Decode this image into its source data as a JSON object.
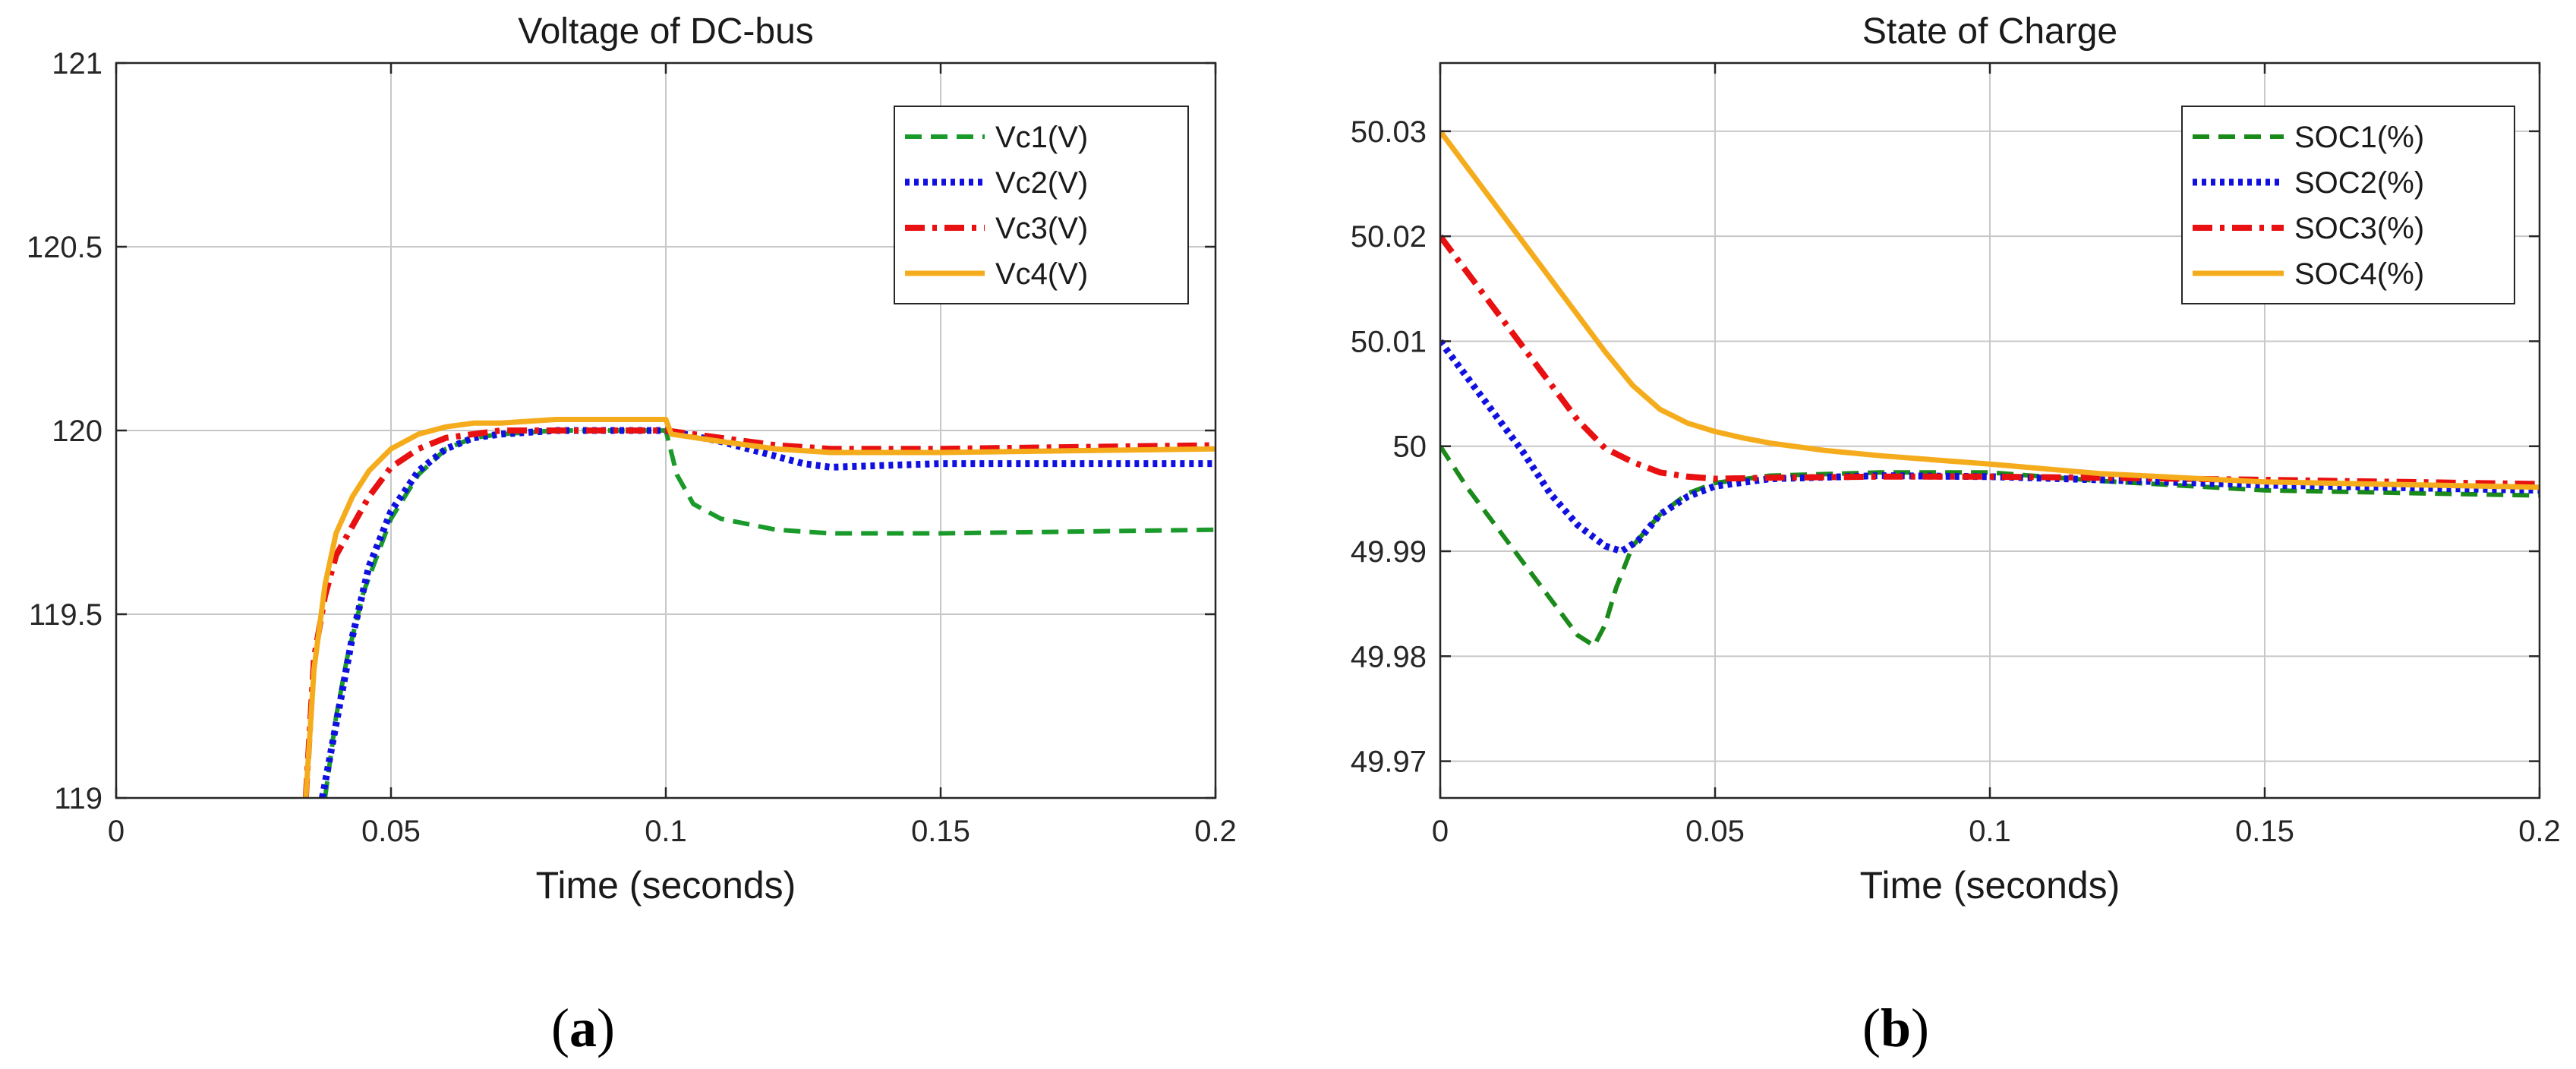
{
  "captions": [
    "a",
    "b"
  ],
  "chart_data": [
    {
      "type": "line",
      "title": "Voltage of DC-bus",
      "xlabel": "Time (seconds)",
      "ylabel": "",
      "xlim": [
        0,
        0.2
      ],
      "ylim": [
        119,
        121
      ],
      "xticks": [
        0,
        0.05,
        0.1,
        0.15,
        0.2
      ],
      "xtick_labels": [
        "0",
        "0.05",
        "0.1",
        "0.15",
        "0.2"
      ],
      "yticks": [
        119,
        119.5,
        120,
        120.5,
        121
      ],
      "ytick_labels": [
        "119",
        "119.5",
        "120",
        "120.5",
        "121"
      ],
      "grid": true,
      "legend_position": "top-right",
      "series": [
        {
          "name": "Vc1(V)",
          "color": "#1a9a2a",
          "dash": "dashed",
          "x": [
            0.038,
            0.04,
            0.042,
            0.045,
            0.05,
            0.055,
            0.06,
            0.065,
            0.07,
            0.08,
            0.09,
            0.1,
            0.102,
            0.105,
            0.11,
            0.12,
            0.13,
            0.15,
            0.2
          ],
          "y": [
            119.0,
            119.22,
            119.38,
            119.56,
            119.76,
            119.88,
            119.95,
            119.98,
            119.99,
            120.0,
            120.0,
            120.0,
            119.88,
            119.8,
            119.76,
            119.73,
            119.72,
            119.72,
            119.73
          ]
        },
        {
          "name": "Vc2(V)",
          "color": "#1010e0",
          "dash": "dotted",
          "x": [
            0.0375,
            0.04,
            0.043,
            0.046,
            0.05,
            0.055,
            0.06,
            0.065,
            0.07,
            0.08,
            0.09,
            0.1,
            0.11,
            0.12,
            0.125,
            0.13,
            0.15,
            0.2
          ],
          "y": [
            119.0,
            119.2,
            119.44,
            119.63,
            119.78,
            119.89,
            119.95,
            119.98,
            119.99,
            120.0,
            120.0,
            120.0,
            119.97,
            119.93,
            119.91,
            119.9,
            119.91,
            119.91
          ]
        },
        {
          "name": "Vc3(V)",
          "color": "#e81010",
          "dash": "dashdot",
          "x": [
            0.0345,
            0.036,
            0.038,
            0.04,
            0.043,
            0.046,
            0.05,
            0.055,
            0.06,
            0.065,
            0.07,
            0.08,
            0.09,
            0.1,
            0.11,
            0.12,
            0.13,
            0.15,
            0.2
          ],
          "y": [
            119.0,
            119.38,
            119.55,
            119.66,
            119.74,
            119.82,
            119.9,
            119.95,
            119.98,
            119.99,
            120.0,
            120.0,
            120.0,
            120.0,
            119.98,
            119.96,
            119.95,
            119.95,
            119.96
          ]
        },
        {
          "name": "Vc4(V)",
          "color": "#f5ac1c",
          "dash": "solid",
          "x": [
            0.0345,
            0.036,
            0.038,
            0.04,
            0.043,
            0.046,
            0.05,
            0.055,
            0.06,
            0.065,
            0.07,
            0.08,
            0.09,
            0.1,
            0.101,
            0.11,
            0.12,
            0.13,
            0.15,
            0.2
          ],
          "y": [
            119.0,
            119.35,
            119.58,
            119.72,
            119.82,
            119.89,
            119.95,
            119.99,
            120.01,
            120.02,
            120.02,
            120.03,
            120.03,
            120.03,
            119.99,
            119.97,
            119.95,
            119.94,
            119.94,
            119.95
          ]
        }
      ]
    },
    {
      "type": "line",
      "title": "State of Charge",
      "xlabel": "Time (seconds)",
      "ylabel": "",
      "xlim": [
        0,
        0.2
      ],
      "ylim": [
        49.9665,
        50.0365
      ],
      "xticks": [
        0,
        0.05,
        0.1,
        0.15,
        0.2
      ],
      "xtick_labels": [
        "0",
        "0.05",
        "0.1",
        "0.15",
        "0.2"
      ],
      "yticks": [
        49.97,
        49.98,
        49.99,
        50.0,
        50.01,
        50.02,
        50.03
      ],
      "ytick_labels": [
        "49.97",
        "49.98",
        "49.99",
        "50",
        "50.01",
        "50.02",
        "50.03"
      ],
      "grid": true,
      "legend_position": "top-right",
      "series": [
        {
          "name": "SOC1(%)",
          "color": "#1a8a1a",
          "dash": "dashed",
          "x": [
            0,
            0.005,
            0.01,
            0.015,
            0.02,
            0.025,
            0.028,
            0.03,
            0.032,
            0.035,
            0.04,
            0.045,
            0.05,
            0.06,
            0.08,
            0.1,
            0.12,
            0.15,
            0.2
          ],
          "y": [
            50.0,
            49.996,
            49.9925,
            49.989,
            49.9855,
            49.982,
            49.981,
            49.983,
            49.9865,
            49.9905,
            49.9935,
            49.9955,
            49.9965,
            49.9972,
            49.9975,
            49.9975,
            49.9967,
            49.9958,
            49.9953
          ]
        },
        {
          "name": "SOC2(%)",
          "color": "#1010e0",
          "dash": "dotted",
          "x": [
            0,
            0.005,
            0.01,
            0.015,
            0.02,
            0.025,
            0.03,
            0.033,
            0.036,
            0.04,
            0.045,
            0.05,
            0.06,
            0.08,
            0.1,
            0.12,
            0.15,
            0.2
          ],
          "y": [
            50.01,
            50.0065,
            50.003,
            49.9995,
            49.9955,
            49.9925,
            49.9905,
            49.99,
            49.991,
            49.9935,
            49.9952,
            49.9962,
            49.9969,
            49.9972,
            49.9971,
            49.9968,
            49.9963,
            49.9958
          ]
        },
        {
          "name": "SOC3(%)",
          "color": "#e81010",
          "dash": "dashdot",
          "x": [
            0,
            0.005,
            0.01,
            0.015,
            0.02,
            0.025,
            0.03,
            0.035,
            0.04,
            0.045,
            0.05,
            0.06,
            0.08,
            0.1,
            0.12,
            0.15,
            0.2
          ],
          "y": [
            50.02,
            50.0165,
            50.013,
            50.0095,
            50.006,
            50.0025,
            49.9998,
            49.9985,
            49.9975,
            49.9971,
            49.9969,
            49.997,
            49.9971,
            49.9971,
            49.997,
            49.9968,
            49.9964
          ]
        },
        {
          "name": "SOC4(%)",
          "color": "#f5ac1c",
          "dash": "solid",
          "x": [
            0,
            0.005,
            0.01,
            0.015,
            0.02,
            0.025,
            0.03,
            0.035,
            0.04,
            0.045,
            0.05,
            0.055,
            0.06,
            0.07,
            0.08,
            0.1,
            0.12,
            0.15,
            0.2
          ],
          "y": [
            50.03,
            50.0265,
            50.023,
            50.0195,
            50.016,
            50.0125,
            50.009,
            50.0058,
            50.0035,
            50.0022,
            50.0014,
            50.0008,
            50.0003,
            49.9996,
            49.9991,
            49.9983,
            49.9974,
            49.9966,
            49.9961
          ]
        }
      ]
    }
  ]
}
